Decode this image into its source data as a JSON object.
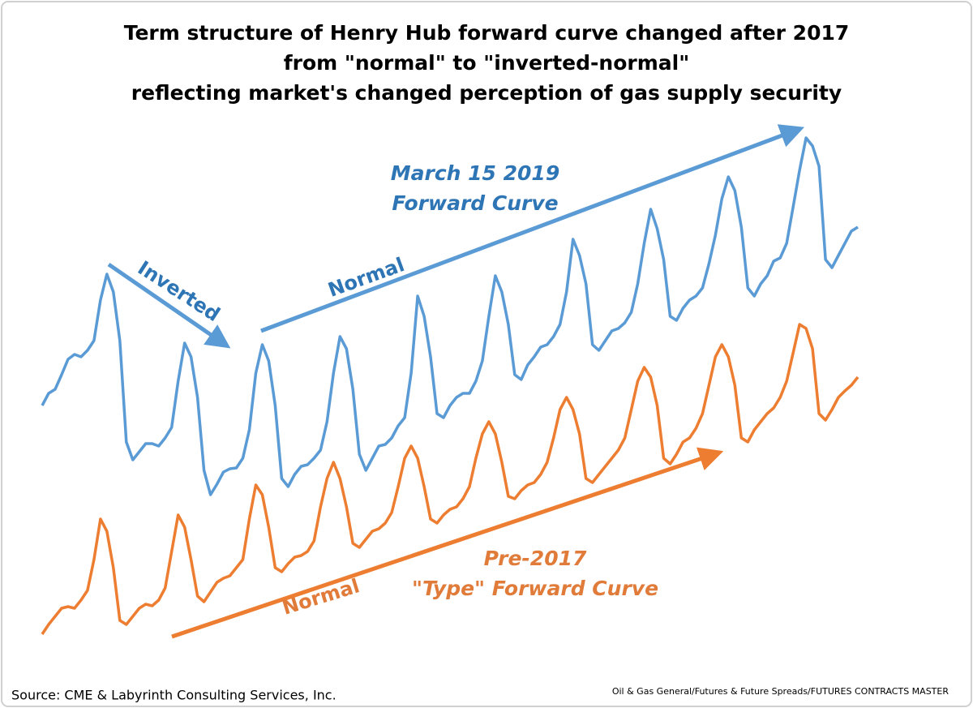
{
  "chart_data": {
    "type": "line",
    "title": [
      "Term structure of Henry Hub forward curve changed after 2017",
      "from \"normal\" to \"inverted-normal\"",
      "reflecting market's changed perception of gas supply security"
    ],
    "ylim": [
      0,
      6.5
    ],
    "series": [
      {
        "name": [
          "March 15 2019",
          "Forward Curve"
        ],
        "color": "#5b9bd5",
        "values": [
          3.0,
          3.15,
          3.2,
          3.38,
          3.57,
          3.63,
          3.6,
          3.68,
          3.8,
          4.3,
          4.62,
          4.4,
          3.8,
          2.55,
          2.33,
          2.43,
          2.53,
          2.53,
          2.5,
          2.6,
          2.73,
          3.3,
          3.77,
          3.6,
          3.1,
          2.2,
          1.9,
          2.03,
          2.18,
          2.22,
          2.23,
          2.35,
          2.7,
          3.4,
          3.75,
          3.55,
          3.0,
          2.1,
          2.0,
          2.15,
          2.25,
          2.27,
          2.35,
          2.45,
          2.8,
          3.4,
          3.85,
          3.7,
          3.2,
          2.4,
          2.2,
          2.35,
          2.5,
          2.52,
          2.6,
          2.75,
          2.85,
          3.4,
          4.35,
          4.1,
          3.6,
          2.9,
          2.85,
          3.0,
          3.1,
          3.15,
          3.15,
          3.3,
          3.55,
          4.1,
          4.6,
          4.4,
          4.0,
          3.38,
          3.32,
          3.5,
          3.6,
          3.72,
          3.75,
          3.85,
          4.0,
          4.4,
          5.05,
          4.85,
          4.5,
          3.75,
          3.68,
          3.8,
          3.92,
          3.95,
          4.02,
          4.15,
          4.5,
          5.0,
          5.42,
          5.18,
          4.8,
          4.1,
          4.05,
          4.2,
          4.3,
          4.35,
          4.45,
          4.75,
          5.1,
          5.55,
          5.82,
          5.65,
          5.2,
          4.45,
          4.35,
          4.5,
          4.6,
          4.78,
          4.82,
          5.0,
          5.45,
          5.9,
          6.3,
          6.2,
          5.95,
          4.8,
          4.7,
          4.85,
          5.0,
          5.15,
          5.2
        ]
      },
      {
        "name": [
          "Pre-2017",
          "\"Type\" Forward Curve"
        ],
        "color": "#ed7d31",
        "values": [
          0.18,
          0.3,
          0.4,
          0.5,
          0.52,
          0.5,
          0.6,
          0.72,
          1.1,
          1.6,
          1.45,
          1.0,
          0.35,
          0.3,
          0.4,
          0.5,
          0.55,
          0.53,
          0.6,
          0.75,
          1.2,
          1.65,
          1.5,
          1.1,
          0.65,
          0.58,
          0.7,
          0.82,
          0.87,
          0.9,
          1.0,
          1.1,
          1.6,
          2.02,
          1.9,
          1.5,
          1.0,
          0.95,
          1.05,
          1.13,
          1.15,
          1.2,
          1.33,
          1.75,
          2.1,
          2.3,
          2.1,
          1.75,
          1.3,
          1.25,
          1.35,
          1.45,
          1.48,
          1.55,
          1.68,
          2.0,
          2.35,
          2.5,
          2.35,
          2.0,
          1.6,
          1.55,
          1.65,
          1.72,
          1.75,
          1.85,
          2.0,
          2.35,
          2.65,
          2.8,
          2.65,
          2.3,
          1.88,
          1.85,
          1.95,
          2.02,
          2.05,
          2.15,
          2.3,
          2.6,
          2.95,
          3.1,
          2.95,
          2.65,
          2.1,
          2.05,
          2.15,
          2.25,
          2.35,
          2.45,
          2.6,
          2.95,
          3.3,
          3.47,
          3.35,
          3.0,
          2.35,
          2.28,
          2.4,
          2.55,
          2.6,
          2.72,
          2.9,
          3.25,
          3.6,
          3.75,
          3.6,
          3.25,
          2.6,
          2.55,
          2.7,
          2.8,
          2.9,
          2.97,
          3.1,
          3.3,
          3.65,
          4.0,
          3.95,
          3.7,
          2.9,
          2.82,
          2.95,
          3.1,
          3.18,
          3.25,
          3.35
        ]
      }
    ],
    "annotations": [
      "Inverted",
      "Normal",
      "Normal"
    ],
    "source": "Source: CME & Labyrinth Consulting Services, Inc.",
    "footer": "Oil & Gas General/Futures & Future Spreads/FUTURES CONTRACTS MASTER"
  }
}
